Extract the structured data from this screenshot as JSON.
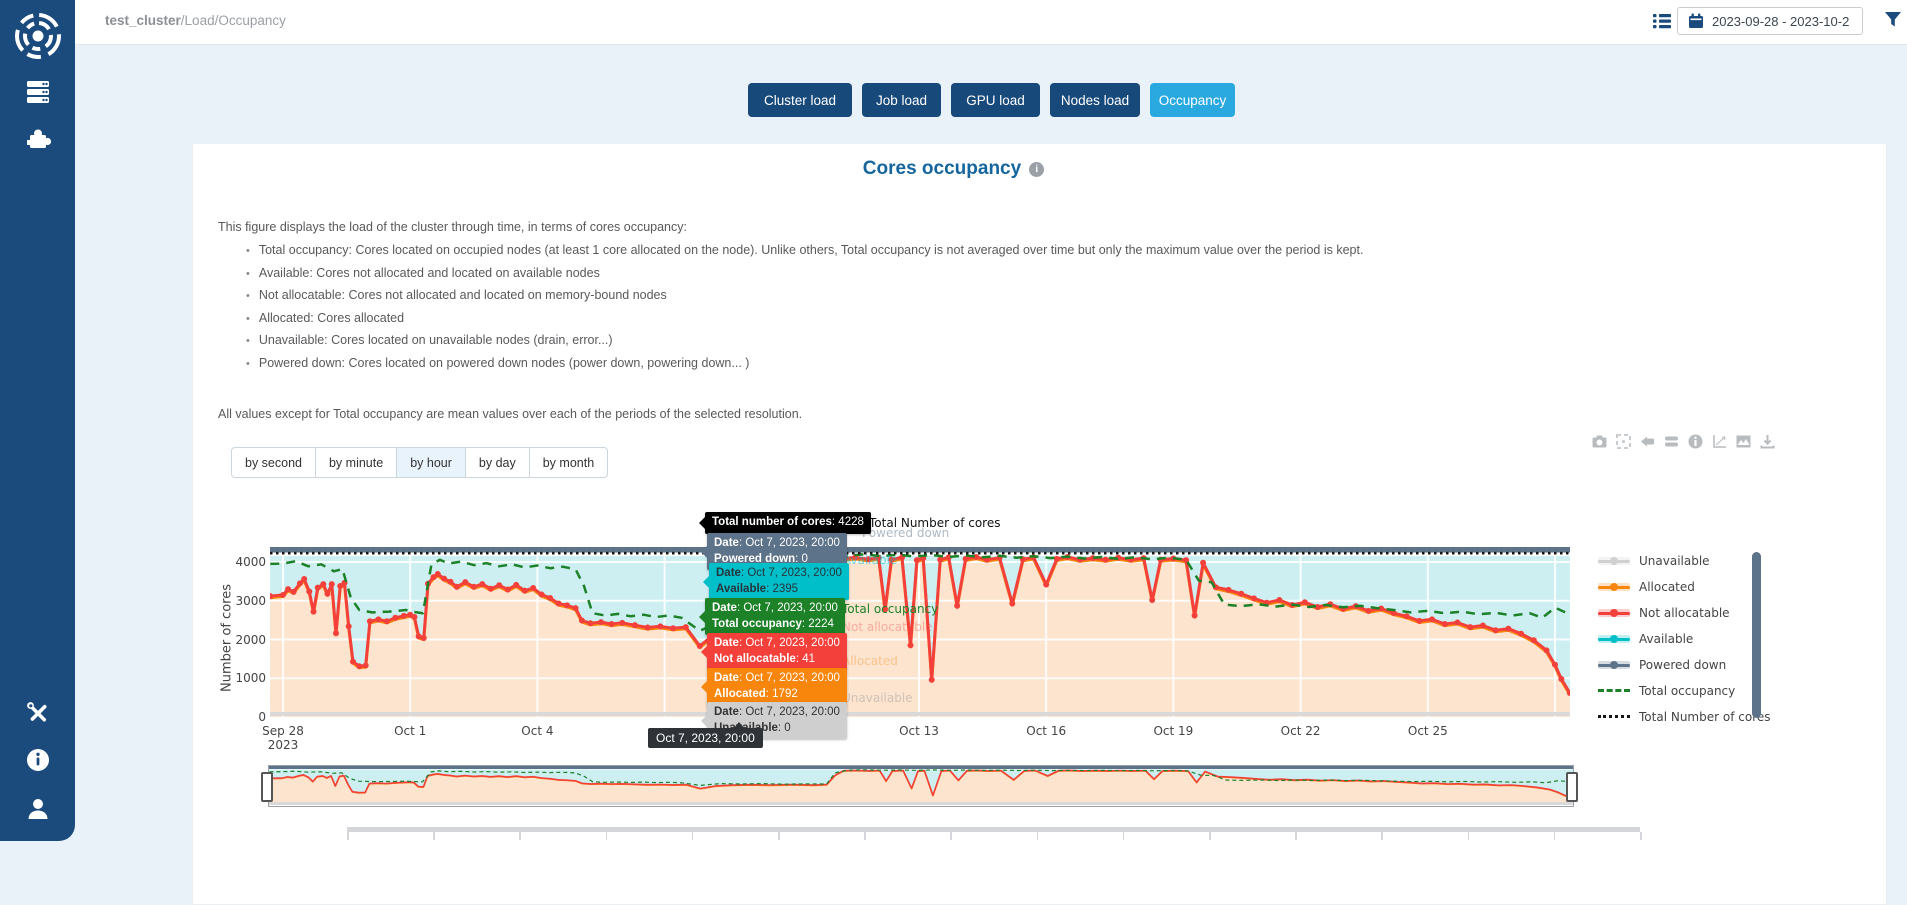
{
  "header": {
    "breadcrumb_app": "test_cluster",
    "breadcrumb_path": "/Load/Occupancy",
    "date_range": "2023-09-28 - 2023-10-2"
  },
  "sidebar": {
    "items": [
      {
        "icon": "logo"
      },
      {
        "icon": "racks"
      },
      {
        "icon": "plugins"
      }
    ],
    "footer": [
      {
        "icon": "tools"
      },
      {
        "icon": "info"
      },
      {
        "icon": "user"
      }
    ]
  },
  "nav": {
    "tabs": [
      {
        "label": "Cluster load",
        "active": false
      },
      {
        "label": "Job load",
        "active": false
      },
      {
        "label": "GPU load",
        "active": false
      },
      {
        "label": "Nodes load",
        "active": false
      },
      {
        "label": "Occupancy",
        "active": true
      }
    ]
  },
  "page": {
    "title": "Cores occupancy",
    "intro": "This figure displays the load of the cluster through time, in terms of cores occupancy:",
    "bullets": [
      "Total occupancy: Cores located on occupied nodes (at least 1 core allocated on the node). Unlike others, Total occupancy is not averaged over time but only the maximum value over the period is kept.",
      "Available: Cores not allocated and located on available nodes",
      "Not allocatable: Cores not allocated and located on memory-bound nodes",
      "Allocated: Cores allocated",
      "Unavailable: Cores located on unavailable nodes (drain, error...)",
      "Powered down: Cores located on powered down nodes (power down, powering down... )"
    ],
    "footnote": "All values except for Total occupancy are mean values over each of the periods of the selected resolution."
  },
  "resolution": {
    "options": [
      "by second",
      "by minute",
      "by hour",
      "by day",
      "by month"
    ],
    "selected": "by hour"
  },
  "modebar": {
    "icons": [
      "camera",
      "expand",
      "eraser",
      "stack",
      "info",
      "axes",
      "chart-image",
      "download"
    ]
  },
  "legend": {
    "items": [
      {
        "label": "Unavailable",
        "color": "#d0d0d0",
        "style": "line-dot"
      },
      {
        "label": "Allocated",
        "color": "#f8860d",
        "style": "line-dot"
      },
      {
        "label": "Not allocatable",
        "color": "#f4403a",
        "style": "line-dot"
      },
      {
        "label": "Available",
        "color": "#00bfc9",
        "style": "line-dot"
      },
      {
        "label": "Powered down",
        "color": "#5d7389",
        "style": "line-dot"
      },
      {
        "label": "Total occupancy",
        "color": "#1c8127",
        "style": "dashed"
      },
      {
        "label": "Total Number of cores",
        "color": "#161616",
        "style": "dotted"
      }
    ]
  },
  "hover": {
    "axis_label": "Oct 7, 2023, 20:00",
    "total": {
      "label_bold": "Total number of cores",
      "value_rest": ": 4228",
      "bg": "#000000",
      "fg": "#ffffff"
    },
    "items": [
      {
        "key": "powered-down",
        "date_bold": "Date",
        "date_rest": ": Oct 7, 2023, 20:00",
        "label_bold": "Powered down",
        "value_rest": ": 0",
        "bg": "#5d7389",
        "fg": "#ffffff"
      },
      {
        "key": "available",
        "date_bold": "Date",
        "date_rest": ": Oct 7, 2023, 20:00",
        "label_bold": "Available",
        "value_rest": ": 2395",
        "bg": "#00bfc9",
        "fg": "#27333c"
      },
      {
        "key": "total-occupancy",
        "date_bold": "Date",
        "date_rest": ": Oct 7, 2023, 20:00",
        "label_bold": "Total occupancy",
        "value_rest": ": 2224",
        "bg": "#1c8127",
        "fg": "#ffffff"
      },
      {
        "key": "not-allocatable",
        "date_bold": "Date",
        "date_rest": ": Oct 7, 2023, 20:00",
        "label_bold": "Not allocatable",
        "value_rest": ": 41",
        "bg": "#f4403a",
        "fg": "#ffffff"
      },
      {
        "key": "allocated",
        "date_bold": "Date",
        "date_rest": ": Oct 7, 2023, 20:00",
        "label_bold": "Allocated",
        "value_rest": ": 1792",
        "bg": "#f8860d",
        "fg": "#ffffff"
      },
      {
        "key": "unavailable",
        "date_bold": "Date",
        "date_rest": ": Oct 7, 2023, 20:00",
        "label_bold": "Unavailable",
        "value_rest": ": 0",
        "bg": "#cfcfcf",
        "fg": "#333333"
      }
    ],
    "side_labels": [
      {
        "text": "Total Number of cores",
        "color": "#111111"
      },
      {
        "text": "Powered down",
        "color": "#5d7389"
      },
      {
        "text": "Available",
        "color": "#00bfc9"
      },
      {
        "text": "Total occupancy",
        "color": "#1c8127"
      },
      {
        "text": "Not allocatable",
        "color": "#f4403a"
      },
      {
        "text": "Allocated",
        "color": "#f8860d"
      },
      {
        "text": "Unavailable",
        "color": "#9a9a9a"
      }
    ]
  },
  "colors": {
    "sidebar": "#1b4b7d",
    "page_bg": "#e9f2f9",
    "accent_dark": "#17497b",
    "accent_active": "#2aa9e0",
    "title": "#15669e",
    "available_fill": "#cdeff2",
    "allocated_fill": "#fce4cf",
    "unavailable_band": "#d9d9d9",
    "powered_down_band": "#5d7389"
  },
  "chart_data": {
    "type": "area",
    "title": "Cores occupancy",
    "xlabel": "",
    "ylabel": "Number of cores",
    "ylim": [
      0,
      4300
    ],
    "yticks": [
      0,
      1000,
      2000,
      3000,
      4000
    ],
    "x_ticks": [
      {
        "label": "Sep 28",
        "sub": "2023",
        "day": 0
      },
      {
        "label": "Oct 1",
        "day": 3
      },
      {
        "label": "Oct 4",
        "day": 6
      },
      {
        "label": "Oct 13",
        "day": 15
      },
      {
        "label": "Oct 16",
        "day": 18
      },
      {
        "label": "Oct 19",
        "day": 21
      },
      {
        "label": "Oct 22",
        "day": 24
      },
      {
        "label": "Oct 25",
        "day": 27
      }
    ],
    "gridline_days": [
      0,
      3,
      6,
      9,
      12,
      15,
      18,
      21,
      24,
      27,
      30
    ],
    "legend_position": "right",
    "stacked_order": [
      "Unavailable",
      "Allocated",
      "Not allocatable",
      "Available",
      "Powered down"
    ],
    "total_number_of_cores": 4228,
    "hover_point": {
      "date": "Oct 7, 2023, 20:00",
      "total_number_of_cores": 4228,
      "powered_down": 0,
      "available": 2395,
      "total_occupancy": 2224,
      "not_allocatable": 41,
      "allocated": 1792,
      "unavailable": 0
    },
    "series": [
      {
        "name": "Unavailable",
        "color": "#d0d0d0",
        "type": "line",
        "constant": 0
      },
      {
        "name": "Allocated",
        "color": "#f8860d",
        "type": "area",
        "derived": "not_allocatable_top + allocated_offset"
      },
      {
        "name": "Not allocatable",
        "color": "#f4403a",
        "type": "area",
        "points_key": "not_allocatable_top"
      },
      {
        "name": "Available",
        "color": "#00bfc9",
        "type": "area",
        "fill_top": 4180
      },
      {
        "name": "Powered down",
        "color": "#5d7389",
        "type": "line",
        "constant_top": 4228
      },
      {
        "name": "Total occupancy",
        "color": "#1c8127",
        "type": "line-dashed",
        "points_key": "total_occupancy"
      },
      {
        "name": "Total Number of cores",
        "color": "#161616",
        "type": "line-dotted",
        "constant": 4228
      }
    ],
    "series_points": {
      "allocated_offset": -41,
      "unavailable_const": 0,
      "powered_down_top": 4228,
      "available_fill_top": 4180,
      "not_allocatable_top": [
        [
          -0.3,
          3120
        ],
        [
          0,
          3150
        ],
        [
          0.12,
          3300
        ],
        [
          0.25,
          3230
        ],
        [
          0.4,
          3450
        ],
        [
          0.5,
          3560
        ],
        [
          0.62,
          3240
        ],
        [
          0.72,
          2720
        ],
        [
          0.82,
          3340
        ],
        [
          0.95,
          3430
        ],
        [
          1.05,
          3180
        ],
        [
          1.15,
          3430
        ],
        [
          1.25,
          2160
        ],
        [
          1.35,
          3380
        ],
        [
          1.45,
          3460
        ],
        [
          1.55,
          2340
        ],
        [
          1.65,
          1430
        ],
        [
          1.8,
          1310
        ],
        [
          1.95,
          1330
        ],
        [
          2.05,
          2470
        ],
        [
          2.25,
          2520
        ],
        [
          2.45,
          2470
        ],
        [
          2.65,
          2560
        ],
        [
          2.85,
          2610
        ],
        [
          3.0,
          2640
        ],
        [
          3.1,
          2580
        ],
        [
          3.2,
          2080
        ],
        [
          3.32,
          2040
        ],
        [
          3.42,
          3440
        ],
        [
          3.55,
          3610
        ],
        [
          3.65,
          3690
        ],
        [
          3.8,
          3570
        ],
        [
          3.95,
          3490
        ],
        [
          4.1,
          3360
        ],
        [
          4.3,
          3480
        ],
        [
          4.5,
          3360
        ],
        [
          4.7,
          3430
        ],
        [
          4.9,
          3310
        ],
        [
          5.1,
          3400
        ],
        [
          5.3,
          3290
        ],
        [
          5.5,
          3410
        ],
        [
          5.7,
          3260
        ],
        [
          5.9,
          3330
        ],
        [
          6.1,
          3160
        ],
        [
          6.3,
          3070
        ],
        [
          6.5,
          2930
        ],
        [
          6.7,
          2880
        ],
        [
          6.9,
          2810
        ],
        [
          7.05,
          2490
        ],
        [
          7.25,
          2420
        ],
        [
          7.5,
          2450
        ],
        [
          7.75,
          2400
        ],
        [
          8.0,
          2430
        ],
        [
          8.3,
          2370
        ],
        [
          8.6,
          2310
        ],
        [
          8.9,
          2340
        ],
        [
          9.2,
          2290
        ],
        [
          9.5,
          2320
        ],
        [
          9.83,
          1833
        ],
        [
          10.2,
          2160
        ],
        [
          10.6,
          2260
        ],
        [
          11.0,
          2310
        ],
        [
          11.5,
          2270
        ],
        [
          12.0,
          2330
        ],
        [
          12.5,
          2260
        ],
        [
          12.8,
          2320
        ],
        [
          13.0,
          3500
        ],
        [
          13.2,
          4080
        ],
        [
          13.5,
          4120
        ],
        [
          13.8,
          4070
        ],
        [
          14.05,
          4110
        ],
        [
          14.2,
          2780
        ],
        [
          14.35,
          4060
        ],
        [
          14.6,
          4120
        ],
        [
          14.8,
          1850
        ],
        [
          14.95,
          4050
        ],
        [
          15.1,
          4100
        ],
        [
          15.3,
          960
        ],
        [
          15.5,
          4060
        ],
        [
          15.7,
          4120
        ],
        [
          15.9,
          2870
        ],
        [
          16.1,
          4080
        ],
        [
          16.35,
          4130
        ],
        [
          16.6,
          4060
        ],
        [
          16.9,
          4110
        ],
        [
          17.2,
          2930
        ],
        [
          17.45,
          4070
        ],
        [
          17.7,
          4120
        ],
        [
          18.0,
          3420
        ],
        [
          18.25,
          4080
        ],
        [
          18.5,
          4130
        ],
        [
          18.8,
          4060
        ],
        [
          19.1,
          4100
        ],
        [
          19.4,
          4060
        ],
        [
          19.7,
          4110
        ],
        [
          20.0,
          4060
        ],
        [
          20.3,
          4100
        ],
        [
          20.5,
          3020
        ],
        [
          20.7,
          4060
        ],
        [
          21.0,
          4090
        ],
        [
          21.3,
          4050
        ],
        [
          21.5,
          2620
        ],
        [
          21.7,
          3980
        ],
        [
          22.0,
          3350
        ],
        [
          22.3,
          3280
        ],
        [
          22.6,
          3180
        ],
        [
          22.9,
          3060
        ],
        [
          23.2,
          2950
        ],
        [
          23.5,
          3020
        ],
        [
          23.8,
          2890
        ],
        [
          24.1,
          2960
        ],
        [
          24.4,
          2840
        ],
        [
          24.7,
          2910
        ],
        [
          25.0,
          2790
        ],
        [
          25.3,
          2860
        ],
        [
          25.6,
          2740
        ],
        [
          25.9,
          2800
        ],
        [
          26.2,
          2680
        ],
        [
          26.5,
          2600
        ],
        [
          26.8,
          2480
        ],
        [
          27.1,
          2520
        ],
        [
          27.4,
          2400
        ],
        [
          27.7,
          2440
        ],
        [
          28.0,
          2320
        ],
        [
          28.3,
          2360
        ],
        [
          28.6,
          2240
        ],
        [
          28.9,
          2280
        ],
        [
          29.2,
          2150
        ],
        [
          29.5,
          1980
        ],
        [
          29.8,
          1720
        ],
        [
          30.0,
          1350
        ],
        [
          30.15,
          980
        ],
        [
          30.35,
          620
        ]
      ],
      "total_occupancy": [
        [
          -0.3,
          3950
        ],
        [
          0,
          3960
        ],
        [
          0.3,
          4020
        ],
        [
          0.6,
          3890
        ],
        [
          0.9,
          3940
        ],
        [
          1.2,
          3760
        ],
        [
          1.4,
          3820
        ],
        [
          1.6,
          3080
        ],
        [
          1.8,
          2760
        ],
        [
          2.1,
          2700
        ],
        [
          2.5,
          2720
        ],
        [
          2.9,
          2760
        ],
        [
          3.1,
          2710
        ],
        [
          3.3,
          2680
        ],
        [
          3.5,
          3930
        ],
        [
          3.7,
          4060
        ],
        [
          3.9,
          3960
        ],
        [
          4.2,
          4010
        ],
        [
          4.5,
          3920
        ],
        [
          4.8,
          3970
        ],
        [
          5.1,
          3890
        ],
        [
          5.4,
          3940
        ],
        [
          5.7,
          3860
        ],
        [
          6.0,
          3910
        ],
        [
          6.3,
          3840
        ],
        [
          6.6,
          3880
        ],
        [
          6.9,
          3810
        ],
        [
          7.1,
          3380
        ],
        [
          7.3,
          2680
        ],
        [
          7.6,
          2620
        ],
        [
          7.9,
          2660
        ],
        [
          8.2,
          2600
        ],
        [
          8.5,
          2640
        ],
        [
          8.8,
          2580
        ],
        [
          9.1,
          2620
        ],
        [
          9.4,
          2560
        ],
        [
          9.83,
          2224
        ],
        [
          10.3,
          2450
        ],
        [
          10.8,
          2400
        ],
        [
          11.3,
          2450
        ],
        [
          11.8,
          2380
        ],
        [
          12.3,
          2420
        ],
        [
          12.8,
          2400
        ],
        [
          13.0,
          3800
        ],
        [
          13.3,
          4160
        ],
        [
          13.7,
          4200
        ],
        [
          14.1,
          4150
        ],
        [
          14.5,
          4190
        ],
        [
          14.9,
          4140
        ],
        [
          15.3,
          4180
        ],
        [
          15.7,
          4130
        ],
        [
          16.1,
          4170
        ],
        [
          16.5,
          4120
        ],
        [
          16.9,
          4160
        ],
        [
          17.3,
          4110
        ],
        [
          17.7,
          4150
        ],
        [
          18.1,
          4100
        ],
        [
          18.5,
          4140
        ],
        [
          18.9,
          4090
        ],
        [
          19.3,
          4130
        ],
        [
          19.7,
          4080
        ],
        [
          20.1,
          4120
        ],
        [
          20.5,
          4070
        ],
        [
          20.9,
          4110
        ],
        [
          21.3,
          4060
        ],
        [
          21.6,
          3520
        ],
        [
          21.9,
          3480
        ],
        [
          22.2,
          2900
        ],
        [
          22.6,
          2860
        ],
        [
          23.0,
          2910
        ],
        [
          23.4,
          2850
        ],
        [
          23.8,
          2900
        ],
        [
          24.2,
          2840
        ],
        [
          24.6,
          2890
        ],
        [
          25.0,
          2830
        ],
        [
          25.4,
          2870
        ],
        [
          25.8,
          2810
        ],
        [
          26.2,
          2760
        ],
        [
          26.6,
          2700
        ],
        [
          27.0,
          2740
        ],
        [
          27.4,
          2680
        ],
        [
          27.8,
          2720
        ],
        [
          28.2,
          2650
        ],
        [
          28.6,
          2690
        ],
        [
          29.0,
          2620
        ],
        [
          29.4,
          2680
        ],
        [
          29.7,
          2560
        ],
        [
          30.0,
          2820
        ],
        [
          30.35,
          2650
        ]
      ]
    }
  }
}
